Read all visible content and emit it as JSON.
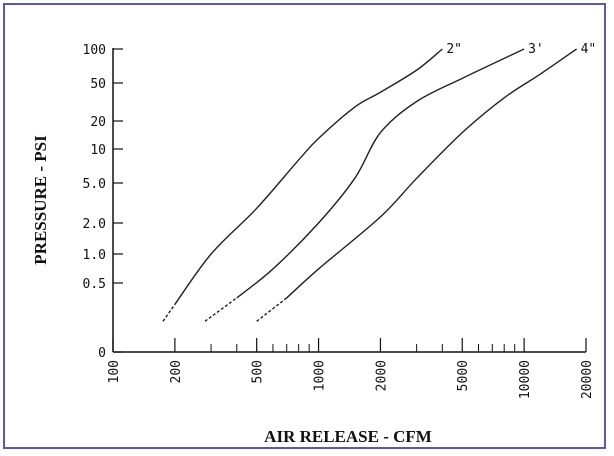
{
  "chart_data": {
    "type": "line",
    "xlabel": "AIR RELEASE - CFM",
    "ylabel": "PRESSURE - PSI",
    "xscale": "log",
    "yscale": "log",
    "xlim": [
      100,
      20000
    ],
    "ylim": [
      0,
      100
    ],
    "x_ticks": [
      "100",
      "200",
      "500",
      "1000",
      "2000",
      "5000",
      "10000",
      "20000"
    ],
    "y_ticks": [
      "100",
      "50",
      "20",
      "10",
      "5.0",
      "2.0",
      "1.0",
      "0.5",
      "0"
    ],
    "grid": false,
    "series": [
      {
        "name": "2\"",
        "points": [
          [
            175,
            0.2
          ],
          [
            200,
            0.3
          ],
          [
            300,
            1.0
          ],
          [
            500,
            2.8
          ],
          [
            800,
            8
          ],
          [
            1000,
            13
          ],
          [
            1500,
            28
          ],
          [
            2000,
            40
          ],
          [
            3000,
            65
          ],
          [
            4000,
            100
          ]
        ]
      },
      {
        "name": "3'",
        "points": [
          [
            280,
            0.2
          ],
          [
            400,
            0.35
          ],
          [
            600,
            0.7
          ],
          [
            1000,
            2.0
          ],
          [
            1500,
            5.5
          ],
          [
            2000,
            15
          ],
          [
            3000,
            32
          ],
          [
            5000,
            55
          ],
          [
            10000,
            100
          ]
        ]
      },
      {
        "name": "4\"",
        "points": [
          [
            500,
            0.2
          ],
          [
            700,
            0.35
          ],
          [
            1000,
            0.7
          ],
          [
            2000,
            2.3
          ],
          [
            3000,
            5.5
          ],
          [
            5000,
            15
          ],
          [
            8000,
            35
          ],
          [
            12000,
            60
          ],
          [
            18000,
            100
          ]
        ]
      }
    ]
  }
}
